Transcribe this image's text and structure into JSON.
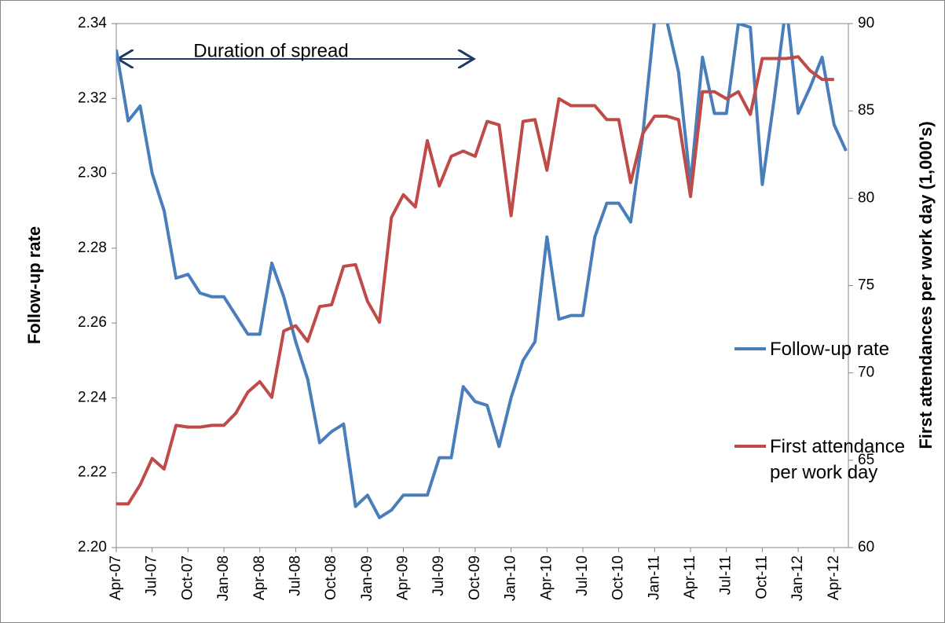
{
  "chart_data": {
    "type": "line",
    "annotation": "Duration of spread",
    "y_label": "Follow-up rate",
    "y2_label": "First attendances per work day (1,000's)",
    "categories": [
      "Apr-07",
      null,
      null,
      "Jul-07",
      null,
      null,
      "Oct-07",
      null,
      null,
      "Jan-08",
      null,
      null,
      "Apr-08",
      null,
      null,
      "Jul-08",
      null,
      null,
      "Oct-08",
      null,
      null,
      "Jan-09",
      null,
      null,
      "Apr-09",
      null,
      null,
      "Jul-09",
      null,
      null,
      "Oct-09",
      null,
      null,
      "Jan-10",
      null,
      null,
      "Apr-10",
      null,
      null,
      "Jul-10",
      null,
      null,
      "Oct-10",
      null,
      null,
      "Jan-11",
      null,
      null,
      "Apr-11",
      null,
      null,
      "Jul-11",
      null,
      null,
      "Oct-11",
      null,
      null,
      "Jan-12",
      null,
      null,
      "Apr-12",
      null
    ],
    "series": [
      {
        "name": "Follow-up rate",
        "color": "#4a7ebb",
        "axis": "y",
        "values": [
          2.333,
          2.314,
          2.318,
          2.3,
          2.29,
          2.272,
          2.273,
          2.268,
          2.267,
          2.267,
          2.262,
          2.257,
          2.257,
          2.276,
          2.267,
          2.255,
          2.245,
          2.228,
          2.231,
          2.233,
          2.211,
          2.214,
          2.208,
          2.21,
          2.214,
          2.214,
          2.214,
          2.224,
          2.224,
          2.243,
          2.239,
          2.238,
          2.227,
          2.24,
          2.25,
          2.255,
          2.283,
          2.261,
          2.262,
          2.262,
          2.283,
          2.292,
          2.292,
          2.287,
          2.31,
          2.341,
          2.341,
          2.327,
          2.297,
          2.331,
          2.316,
          2.316,
          2.34,
          2.339,
          2.297,
          2.32,
          2.345,
          2.316,
          2.323,
          2.331,
          2.313,
          2.306
        ]
      },
      {
        "name": "First attendance per work day",
        "color": "#be4b48",
        "axis": "y2",
        "values": [
          62.5,
          62.5,
          63.6,
          65.1,
          64.5,
          67.0,
          66.9,
          66.9,
          67.0,
          67.0,
          67.7,
          68.9,
          69.5,
          68.6,
          72.4,
          72.7,
          71.8,
          73.8,
          73.9,
          76.1,
          76.2,
          74.1,
          72.9,
          78.9,
          80.2,
          79.5,
          83.3,
          80.7,
          82.4,
          82.7,
          82.4,
          84.4,
          84.2,
          79.0,
          84.4,
          84.5,
          81.6,
          85.7,
          85.3,
          85.3,
          85.3,
          84.5,
          84.5,
          80.9,
          83.7,
          84.7,
          84.7,
          84.5,
          80.1,
          86.1,
          86.1,
          85.7,
          86.1,
          84.8,
          88.0,
          88.0,
          88.0,
          88.1,
          87.3,
          86.8,
          86.8,
          null
        ]
      }
    ],
    "ylim": [
      2.2,
      2.34
    ],
    "yticks": [
      {
        "value": 2.2,
        "label": "2.20"
      },
      2.22,
      2.24,
      2.26,
      2.28,
      {
        "value": 2.3,
        "label": "2.30"
      },
      2.32,
      2.34
    ],
    "y2lim": [
      60,
      90
    ],
    "y2ticks": [
      60,
      65,
      70,
      75,
      80,
      85,
      90
    ],
    "grid": false
  }
}
